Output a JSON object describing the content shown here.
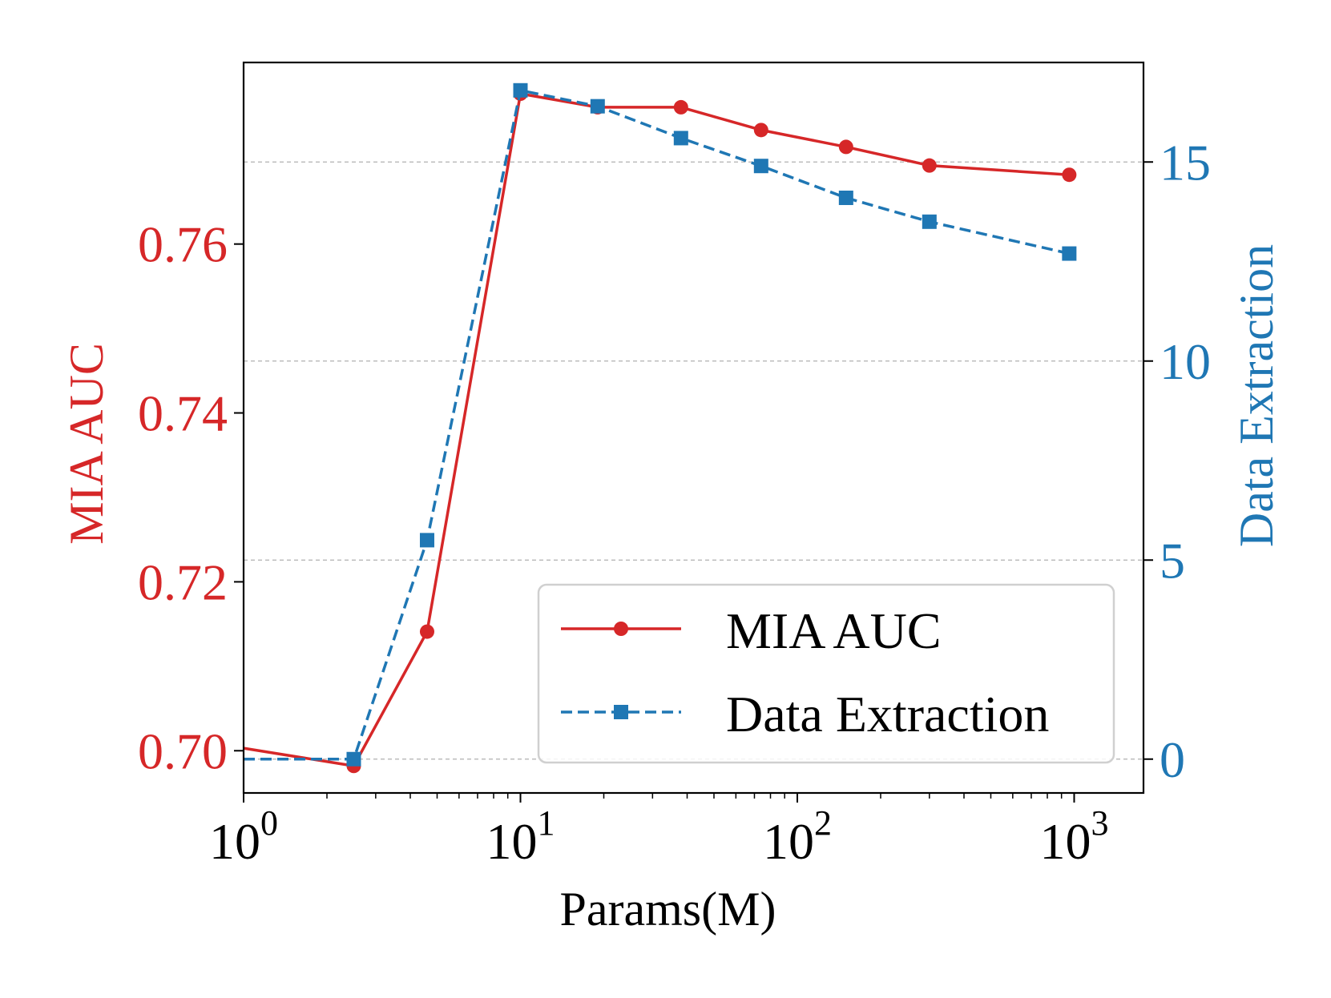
{
  "chart_data": {
    "type": "line",
    "xscale": "log",
    "xlabel": "Params(M)",
    "xlim": [
      1,
      1780
    ],
    "x_ticks": [
      {
        "value": 1,
        "base": "10",
        "exp": "0"
      },
      {
        "value": 10,
        "base": "10",
        "exp": "1"
      },
      {
        "value": 100,
        "base": "10",
        "exp": "2"
      },
      {
        "value": 1000,
        "base": "10",
        "exp": "3"
      }
    ],
    "left_axis": {
      "label": "MIA AUC",
      "color": "#d62728",
      "ylim": [
        0.695,
        0.7815
      ],
      "ticks": [
        {
          "value": 0.7,
          "label": "0.70"
        },
        {
          "value": 0.72,
          "label": "0.72"
        },
        {
          "value": 0.74,
          "label": "0.74"
        },
        {
          "value": 0.76,
          "label": "0.76"
        }
      ]
    },
    "right_axis": {
      "label": "Data Extraction",
      "color": "#1f77b4",
      "ylim": [
        -0.85,
        17.5
      ],
      "ticks": [
        {
          "value": 0,
          "label": "0"
        },
        {
          "value": 5,
          "label": "5"
        },
        {
          "value": 10,
          "label": "10"
        },
        {
          "value": 15,
          "label": "15"
        }
      ]
    },
    "grid": "horizontal-dashed",
    "series": [
      {
        "name": "MIA AUC",
        "axis": "left",
        "color": "#d62728",
        "linestyle": "solid",
        "marker": "circle",
        "x": [
          1,
          2.5,
          4.6,
          10,
          19,
          38,
          74,
          150,
          300,
          960
        ],
        "values": [
          0.7003,
          0.6982,
          0.7141,
          0.7778,
          0.7762,
          0.7762,
          0.7735,
          0.7715,
          0.7693,
          0.7682
        ],
        "marker_from_index": 1
      },
      {
        "name": "Data Extraction",
        "axis": "right",
        "color": "#1f77b4",
        "linestyle": "dashed",
        "marker": "square",
        "x": [
          1,
          2.5,
          4.6,
          10,
          19,
          38,
          74,
          150,
          300,
          960
        ],
        "values": [
          0,
          0,
          5.5,
          16.8,
          16.4,
          15.6,
          14.9,
          14.1,
          13.5,
          12.7
        ],
        "marker_from_index": 1
      }
    ],
    "legend": {
      "position": "lower-right",
      "entries": [
        "MIA AUC",
        "Data Extraction"
      ]
    }
  }
}
